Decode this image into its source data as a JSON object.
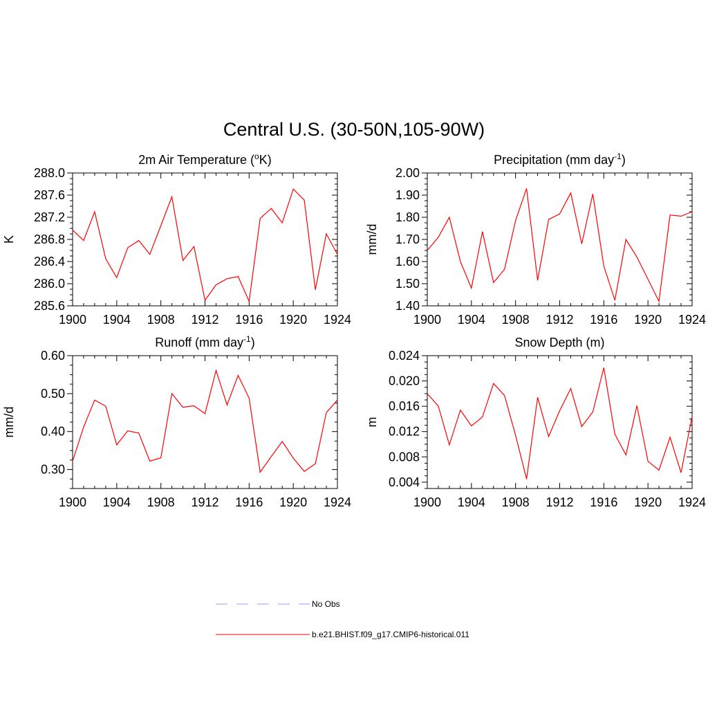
{
  "figure": {
    "title": "Central U.S. (30-50N,105-90W)"
  },
  "legend": {
    "position": "bottom-center",
    "entries": [
      {
        "label": "No Obs",
        "color": "#9999ff",
        "style": "dashed"
      },
      {
        "label": "b.e21.BHIST.f09_g17.CMIP6-historical.011",
        "color": "#ff0000",
        "style": "solid"
      }
    ]
  },
  "chart_data": [
    {
      "type": "line",
      "title": "2m Air Temperature (",
      "title_sup": "o",
      "title_tail": "K)",
      "xlabel": "",
      "ylabel": "K",
      "xlim": [
        1900,
        1924
      ],
      "ylim": [
        285.6,
        288.0
      ],
      "xticks": [
        "1900",
        "1904",
        "1908",
        "1912",
        "1916",
        "1920",
        "1924"
      ],
      "yticks": [
        "285.6",
        "286.0",
        "286.4",
        "286.8",
        "287.2",
        "287.6",
        "288.0"
      ],
      "grid": false,
      "color": "#ff0000",
      "x": [
        1900,
        1901,
        1902,
        1903,
        1904,
        1905,
        1906,
        1907,
        1908,
        1909,
        1910,
        1911,
        1912,
        1913,
        1914,
        1915,
        1916,
        1917,
        1918,
        1919,
        1920,
        1921,
        1922,
        1923,
        1924
      ],
      "y": [
        286.97,
        286.78,
        287.3,
        286.45,
        286.11,
        286.65,
        286.78,
        286.53,
        287.05,
        287.57,
        286.42,
        286.67,
        285.7,
        285.98,
        286.09,
        286.13,
        285.68,
        287.18,
        287.36,
        287.1,
        287.71,
        287.51,
        285.89,
        286.9,
        286.53
      ]
    },
    {
      "type": "line",
      "title": "Precipitation (mm day",
      "title_sup": "-1",
      "title_tail": ")",
      "xlabel": "",
      "ylabel": "mm/d",
      "xlim": [
        1900,
        1924
      ],
      "ylim": [
        1.4,
        2.0
      ],
      "xticks": [
        "1900",
        "1904",
        "1908",
        "1912",
        "1916",
        "1920",
        "1924"
      ],
      "yticks": [
        "1.40",
        "1.50",
        "1.60",
        "1.70",
        "1.80",
        "1.90",
        "2.00"
      ],
      "grid": false,
      "color": "#ff0000",
      "x": [
        1900,
        1901,
        1902,
        1903,
        1904,
        1905,
        1906,
        1907,
        1908,
        1909,
        1910,
        1911,
        1912,
        1913,
        1914,
        1915,
        1916,
        1917,
        1918,
        1919,
        1920,
        1921,
        1922,
        1923,
        1924
      ],
      "y": [
        1.65,
        1.71,
        1.8,
        1.6,
        1.48,
        1.735,
        1.505,
        1.565,
        1.785,
        1.93,
        1.515,
        1.79,
        1.815,
        1.91,
        1.68,
        1.905,
        1.58,
        1.425,
        1.7,
        1.62,
        1.52,
        1.42,
        1.81,
        1.805,
        1.825
      ]
    },
    {
      "type": "line",
      "title": "Runoff (mm day",
      "title_sup": "-1",
      "title_tail": ")",
      "xlabel": "",
      "ylabel": "mm/d",
      "xlim": [
        1900,
        1924
      ],
      "ylim": [
        0.25,
        0.6
      ],
      "xticks": [
        "1900",
        "1904",
        "1908",
        "1912",
        "1916",
        "1920",
        "1924"
      ],
      "yticks": [
        "0.30",
        "0.40",
        "0.50",
        "0.60"
      ],
      "ytick_values": [
        0.3,
        0.4,
        0.5,
        0.6
      ],
      "grid": false,
      "color": "#ff0000",
      "x": [
        1900,
        1901,
        1902,
        1903,
        1904,
        1905,
        1906,
        1907,
        1908,
        1909,
        1910,
        1911,
        1912,
        1913,
        1914,
        1915,
        1916,
        1917,
        1918,
        1919,
        1920,
        1921,
        1922,
        1923,
        1924
      ],
      "y": [
        0.322,
        0.412,
        0.483,
        0.467,
        0.365,
        0.402,
        0.396,
        0.322,
        0.331,
        0.5,
        0.464,
        0.468,
        0.447,
        0.561,
        0.47,
        0.548,
        0.488,
        0.293,
        0.334,
        0.374,
        0.33,
        0.295,
        0.315,
        0.45,
        0.483
      ]
    },
    {
      "type": "line",
      "title": "Snow Depth (m)",
      "title_sup": "",
      "title_tail": "",
      "xlabel": "",
      "ylabel": "m",
      "xlim": [
        1900,
        1924
      ],
      "ylim": [
        0.003,
        0.024
      ],
      "xticks": [
        "1900",
        "1904",
        "1908",
        "1912",
        "1916",
        "1920",
        "1924"
      ],
      "yticks": [
        "0.004",
        "0.008",
        "0.012",
        "0.016",
        "0.020",
        "0.024"
      ],
      "ytick_values": [
        0.004,
        0.008,
        0.012,
        0.016,
        0.02,
        0.024
      ],
      "grid": false,
      "color": "#ff0000",
      "x": [
        1900,
        1901,
        1902,
        1903,
        1904,
        1905,
        1906,
        1907,
        1908,
        1909,
        1910,
        1911,
        1912,
        1913,
        1914,
        1915,
        1916,
        1917,
        1918,
        1919,
        1920,
        1921,
        1922,
        1923,
        1924
      ],
      "y": [
        0.018,
        0.016,
        0.0099,
        0.0154,
        0.0129,
        0.0143,
        0.0196,
        0.0177,
        0.0114,
        0.0045,
        0.0174,
        0.0112,
        0.0153,
        0.0188,
        0.0128,
        0.0151,
        0.0221,
        0.0116,
        0.0083,
        0.0161,
        0.0073,
        0.0059,
        0.0111,
        0.0055,
        0.0144
      ]
    }
  ]
}
